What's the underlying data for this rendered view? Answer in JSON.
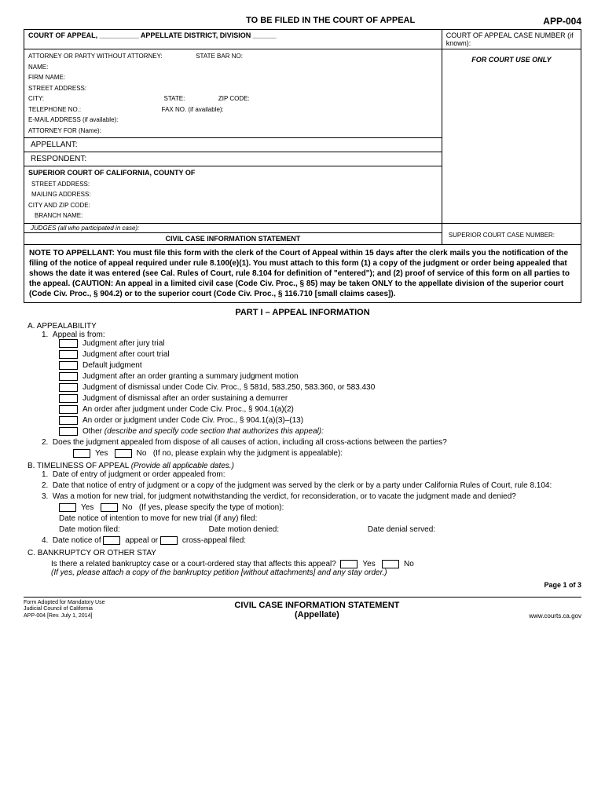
{
  "header": {
    "filing_notice": "TO BE FILED IN THE COURT OF APPEAL",
    "form_code": "APP-004"
  },
  "caption": {
    "court_line": "COURT OF APPEAL, __________ APPELLATE DISTRICT, DIVISION ______",
    "case_number_label": "COURT OF APPEAL CASE NUMBER (if known):",
    "attorney_header": "ATTORNEY OR PARTY WITHOUT ATTORNEY:",
    "state_bar": "STATE BAR NO:",
    "name": "NAME:",
    "firm": "FIRM NAME:",
    "street": "STREET ADDRESS:",
    "city": "CITY:",
    "state": "STATE:",
    "zip": "ZIP CODE:",
    "tel": "TELEPHONE NO.:",
    "fax": "FAX NO. (if available):",
    "email": "E-MAIL ADDRESS (if available):",
    "attorney_for": "ATTORNEY FOR (Name):",
    "court_use": "FOR COURT USE ONLY",
    "appellant": "APPELLANT:",
    "respondent": "RESPONDENT:",
    "superior_court": "SUPERIOR COURT OF CALIFORNIA, COUNTY OF",
    "mailing": "MAILING ADDRESS:",
    "cityzip": "CITY AND ZIP CODE:",
    "branch": "BRANCH NAME:",
    "judges": "JUDGES (all who participated in case):",
    "superior_case": "SUPERIOR COURT CASE NUMBER:",
    "title": "CIVIL CASE INFORMATION STATEMENT"
  },
  "note": "NOTE TO APPELLANT: You must file this form with the clerk of the Court of Appeal within 15 days after the clerk mails you the notification of the filing of the notice of appeal required under rule 8.100(e)(1). You must attach to this form (1) a copy of the judgment or order being appealed that shows the date it was entered (see Cal. Rules of Court, rule 8.104 for definition of \"entered\"); and (2) proof of service of this form on all parties to the appeal. (CAUTION: An appeal in a limited civil case (Code Civ. Proc., § 85) may be taken ONLY to the appellate division of the superior court (Code Civ. Proc., § 904.2) or to the superior court (Code Civ. Proc., § 116.710 [small claims cases]).",
  "part1_title": "PART I – APPEAL INFORMATION",
  "sectionA": {
    "label": "A.  APPEALABILITY",
    "q1": "Appeal is from:",
    "opts": [
      "Judgment after jury trial",
      "Judgment after court trial",
      "Default judgment",
      "Judgment after an order granting a summary judgment motion",
      "Judgment of dismissal under Code Civ. Proc., § 581d, 583.250, 583.360, or 583.430",
      "Judgment of dismissal after an order sustaining a demurrer",
      "An order after judgment under Code Civ. Proc., § 904.1(a)(2)",
      "An order or judgment under Code Civ. Proc., § 904.1(a)(3)–(13)"
    ],
    "other_label": "Other",
    "other_desc": "(describe and specify code section that authorizes this appeal):",
    "q2": "Does the judgment appealed from dispose of all causes of action, including all cross-actions between the parties?",
    "yes": "Yes",
    "no": "No",
    "q2_note": "(If no, please explain why the judgment is appealable):"
  },
  "sectionB": {
    "label": "B.  TIMELINESS OF APPEAL",
    "label_note": "(Provide all applicable dates.)",
    "q1": "Date of entry of judgment or order appealed from:",
    "q2": "Date that notice of entry of judgment or a copy of the judgment was served by the clerk or by a party under California Rules of Court, rule 8.104:",
    "q3": "Was a motion for new trial, for judgment notwithstanding the verdict, for reconsideration, or to vacate the judgment made and denied?",
    "yes": "Yes",
    "no": "No",
    "q3_note": "(If yes, please specify the type of motion):",
    "q3a": "Date notice of intention to move for new trial (if any) filed:",
    "q3b": "Date motion filed:",
    "q3c": "Date motion denied:",
    "q3d": "Date denial served:",
    "q4_pre": "Date notice of",
    "q4_appeal": "appeal or",
    "q4_cross": "cross-appeal filed:"
  },
  "sectionC": {
    "label": "C.  BANKRUPTCY OR OTHER STAY",
    "q": "Is there a related bankruptcy case or a court-ordered stay that affects this appeal?",
    "yes": "Yes",
    "no": "No",
    "note": "(If yes, please attach a copy of the bankruptcy petition [without attachments] and any stay order.)"
  },
  "footer": {
    "page": "Page 1 of 3",
    "adopted1": "Form Adopted for Mandatory Use",
    "adopted2": "Judicial Council of California",
    "adopted3": "APP-004 [Rev. July 1, 2014]",
    "title1": "CIVIL CASE INFORMATION STATEMENT",
    "title2": "(Appellate)",
    "url": "www.courts.ca.gov"
  }
}
